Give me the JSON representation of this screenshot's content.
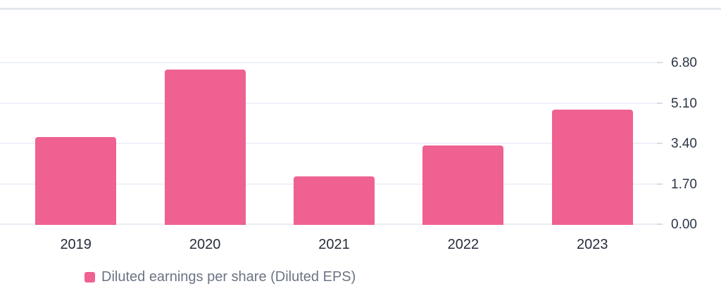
{
  "chart_data": {
    "type": "bar",
    "title": "",
    "categories": [
      "2019",
      "2020",
      "2021",
      "2022",
      "2023"
    ],
    "series": [
      {
        "name": "Diluted earnings per share (Diluted EPS)",
        "color": "#ef6191",
        "values": [
          3.7,
          6.54,
          2.03,
          3.34,
          4.86
        ]
      }
    ],
    "xlabel": "",
    "ylabel": "",
    "ylim": [
      0,
      6.8
    ],
    "yticks": [
      {
        "value": 0,
        "label": "0.00"
      },
      {
        "value": 1.7,
        "label": "1.70"
      },
      {
        "value": 3.4,
        "label": "3.40"
      },
      {
        "value": 5.1,
        "label": "5.10"
      },
      {
        "value": 6.8,
        "label": "6.80"
      }
    ],
    "grid": "horizontal",
    "axis_side": "right",
    "legend_position": "bottom-left"
  }
}
